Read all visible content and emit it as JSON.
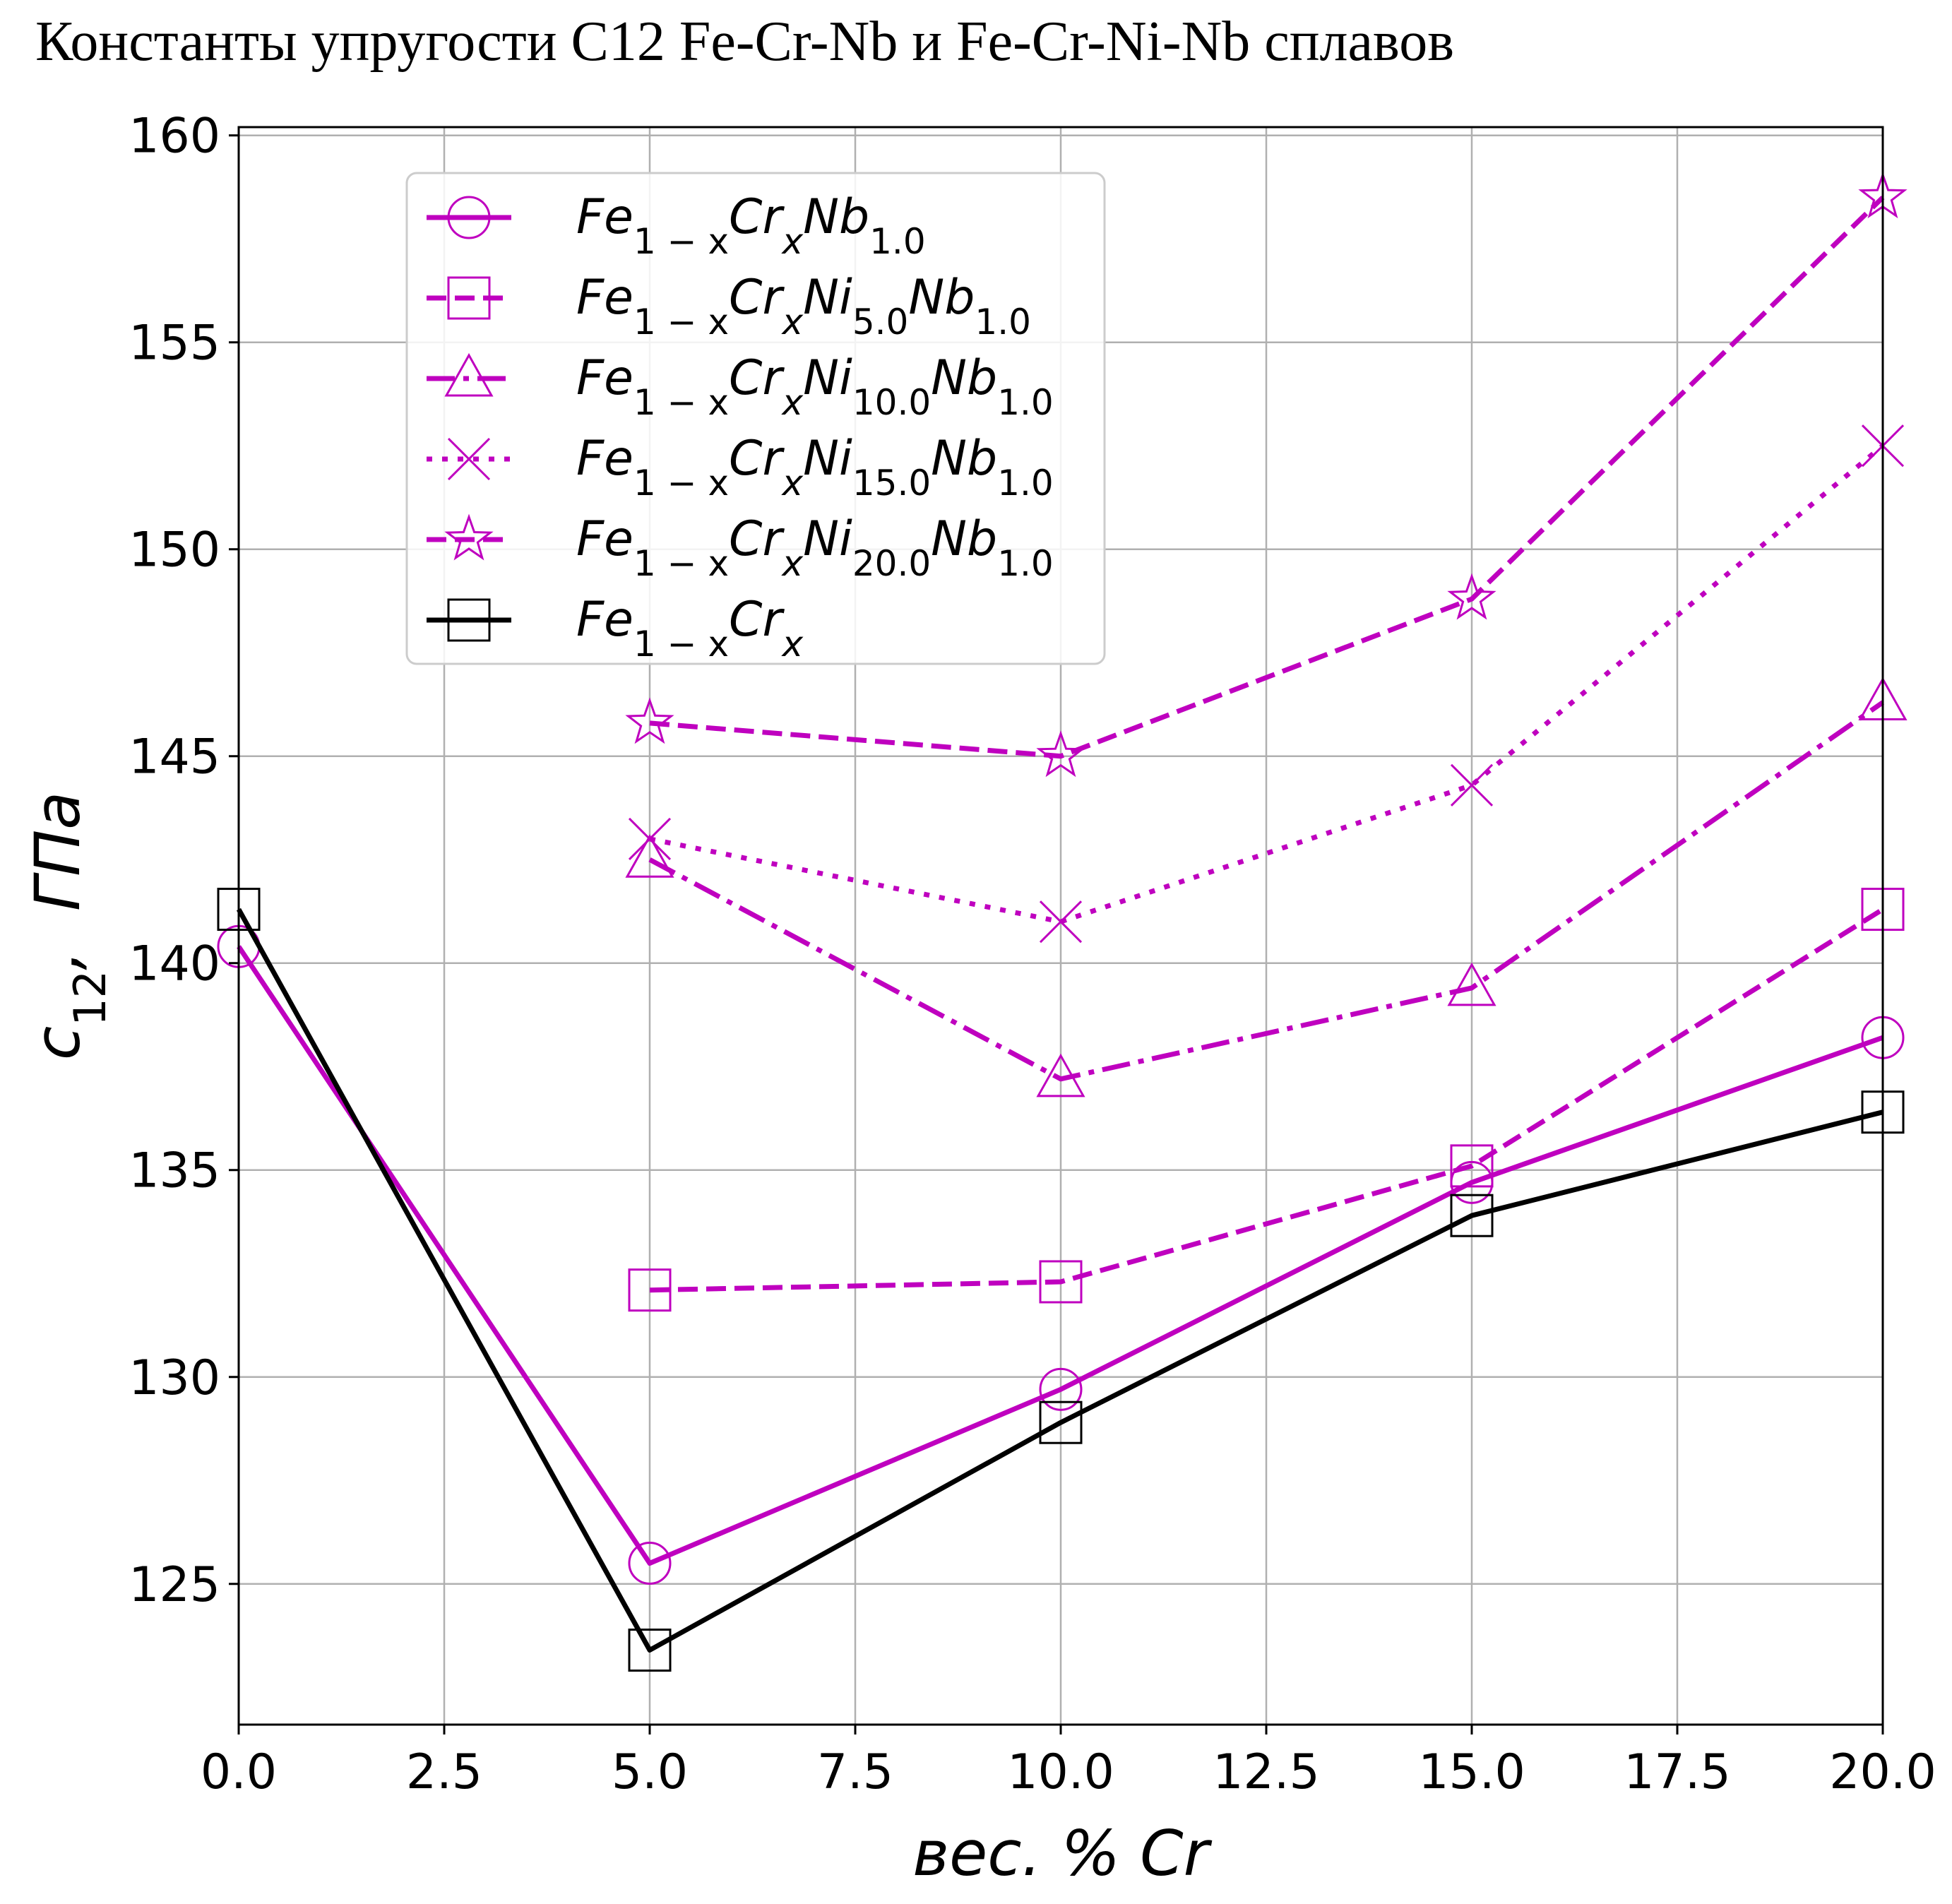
{
  "chart_data": {
    "type": "line",
    "title": "Константы упругости C12 Fe-Cr-Nb и Fe-Cr-Ni-Nb сплавов",
    "xlabel": "вес. % Cr",
    "ylabel": "c12, ГПа",
    "ylabel_main": "c",
    "ylabel_sub": "12",
    "ylabel_unit": ",  ГПа",
    "xlim": [
      0.0,
      20.0
    ],
    "ylim": [
      121.6,
      160.2
    ],
    "grid": true,
    "legend_location": "upper-left",
    "x_ticks": [
      {
        "value": 0.0,
        "label": "0.0"
      },
      {
        "value": 2.5,
        "label": "2.5"
      },
      {
        "value": 5.0,
        "label": "5.0"
      },
      {
        "value": 7.5,
        "label": "7.5"
      },
      {
        "value": 10.0,
        "label": "10.0"
      },
      {
        "value": 12.5,
        "label": "12.5"
      },
      {
        "value": 15.0,
        "label": "15.0"
      },
      {
        "value": 17.5,
        "label": "17.5"
      },
      {
        "value": 20.0,
        "label": "20.0"
      }
    ],
    "y_ticks": [
      {
        "value": 125,
        "label": "125"
      },
      {
        "value": 130,
        "label": "130"
      },
      {
        "value": 135,
        "label": "135"
      },
      {
        "value": 140,
        "label": "140"
      },
      {
        "value": 145,
        "label": "145"
      },
      {
        "value": 150,
        "label": "150"
      },
      {
        "value": 155,
        "label": "155"
      },
      {
        "value": 160,
        "label": "160"
      }
    ],
    "series": [
      {
        "name": "Fe1-xCrxNb1.0",
        "label_parts": [
          [
            "Fe",
            "1 − x"
          ],
          [
            "Cr",
            "x"
          ],
          [
            "Nb",
            "1.0"
          ]
        ],
        "color": "#bf00bf",
        "dash": "solid",
        "marker": "circle",
        "x": [
          0,
          5,
          10,
          15,
          20
        ],
        "y": [
          140.4,
          125.5,
          129.7,
          134.7,
          138.2
        ]
      },
      {
        "name": "Fe1-xCrxNi5.0Nb1.0",
        "label_parts": [
          [
            "Fe",
            "1 − x"
          ],
          [
            "Cr",
            "x"
          ],
          [
            "Ni",
            "5.0"
          ],
          [
            "Nb",
            "1.0"
          ]
        ],
        "color": "#bf00bf",
        "dash": "dashed",
        "marker": "square",
        "x": [
          5,
          10,
          15,
          20
        ],
        "y": [
          132.1,
          132.3,
          135.1,
          141.3
        ]
      },
      {
        "name": "Fe1-xCrxNi10.0Nb1.0",
        "label_parts": [
          [
            "Fe",
            "1 − x"
          ],
          [
            "Cr",
            "x"
          ],
          [
            "Ni",
            "10.0"
          ],
          [
            "Nb",
            "1.0"
          ]
        ],
        "color": "#bf00bf",
        "dash": "dashdot",
        "marker": "triangle",
        "x": [
          5,
          10,
          15,
          20
        ],
        "y": [
          142.5,
          137.2,
          139.4,
          146.3
        ]
      },
      {
        "name": "Fe1-xCrxNi15.0Nb1.0",
        "label_parts": [
          [
            "Fe",
            "1 − x"
          ],
          [
            "Cr",
            "x"
          ],
          [
            "Ni",
            "15.0"
          ],
          [
            "Nb",
            "1.0"
          ]
        ],
        "color": "#bf00bf",
        "dash": "dotted",
        "marker": "x",
        "x": [
          5,
          10,
          15,
          20
        ],
        "y": [
          143.0,
          141.0,
          144.3,
          152.5
        ]
      },
      {
        "name": "Fe1-xCrxNi20.0Nb1.0",
        "label_parts": [
          [
            "Fe",
            "1 − x"
          ],
          [
            "Cr",
            "x"
          ],
          [
            "Ni",
            "20.0"
          ],
          [
            "Nb",
            "1.0"
          ]
        ],
        "color": "#bf00bf",
        "dash": "dashed",
        "marker": "star",
        "x": [
          5,
          10,
          15,
          20
        ],
        "y": [
          145.8,
          145.0,
          148.8,
          158.5
        ]
      },
      {
        "name": "Fe1-xCrx",
        "label_parts": [
          [
            "Fe",
            "1 − x"
          ],
          [
            "Cr",
            "x"
          ]
        ],
        "color": "#000000",
        "dash": "solid",
        "marker": "square",
        "x": [
          0,
          5,
          10,
          15,
          20
        ],
        "y": [
          141.3,
          123.4,
          128.9,
          133.9,
          136.4
        ]
      }
    ]
  }
}
